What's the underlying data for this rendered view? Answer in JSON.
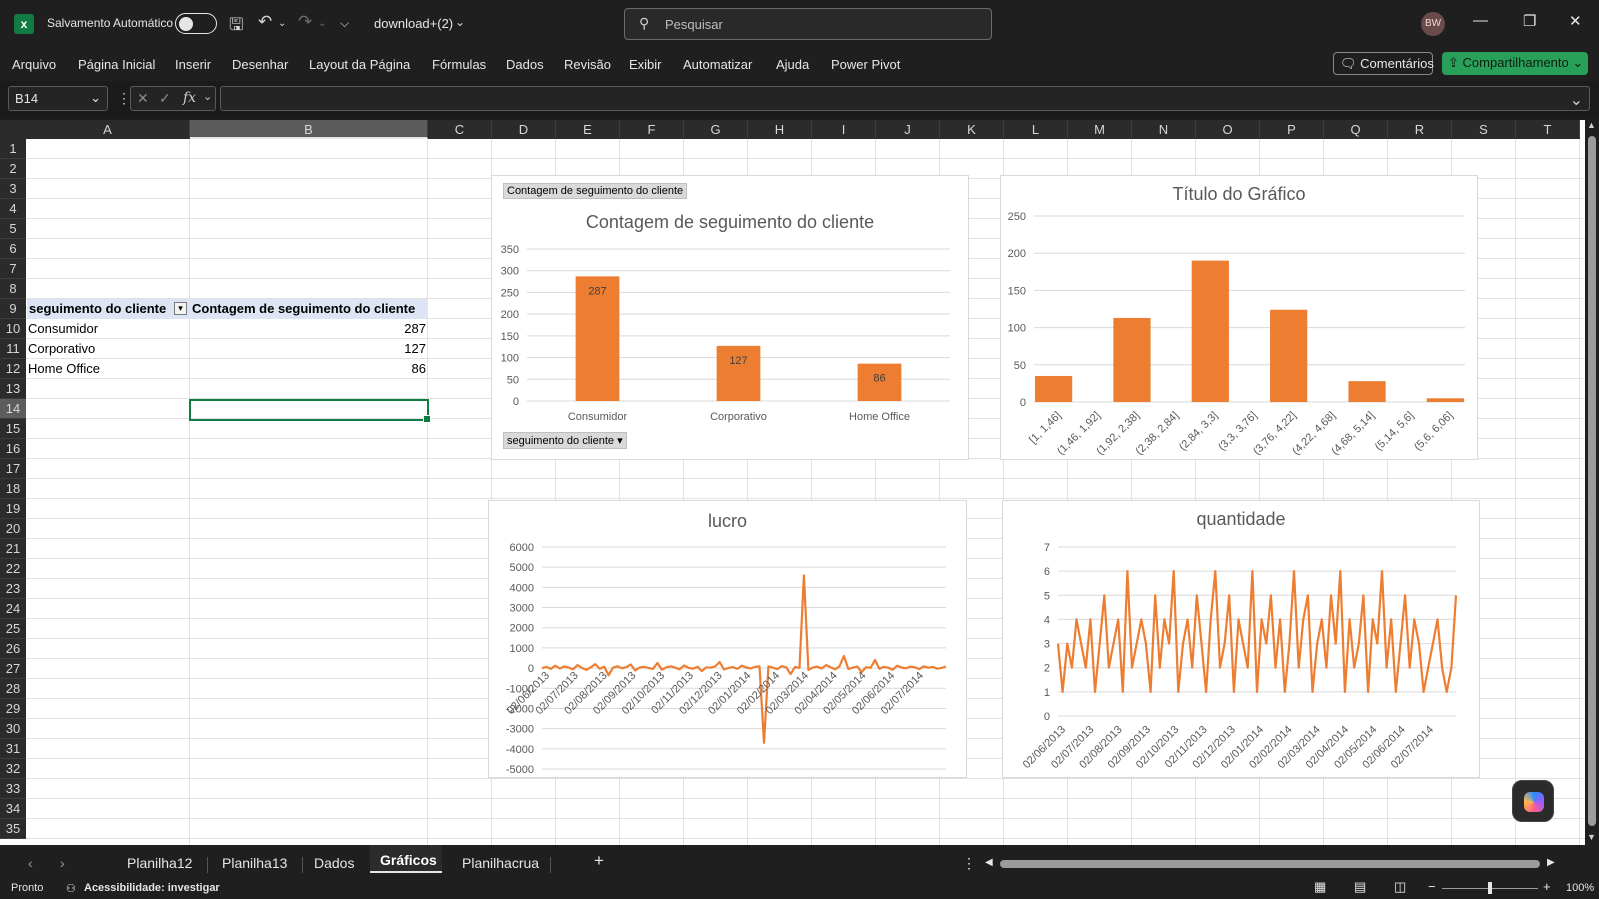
{
  "titlebar": {
    "autosave_label": "Salvamento Automático",
    "filename": "download+(2)",
    "search_placeholder": "Pesquisar",
    "avatar_initials": "BW"
  },
  "menu": {
    "items": [
      "Arquivo",
      "Página Inicial",
      "Inserir",
      "Desenhar",
      "Layout da Página",
      "Fórmulas",
      "Dados",
      "Revisão",
      "Exibir",
      "Automatizar",
      "Ajuda",
      "Power Pivot"
    ],
    "comments_label": "Comentários",
    "share_label": "Compartilhamento"
  },
  "formula_bar": {
    "name_box": "B14",
    "formula": "",
    "fx_label": "fx"
  },
  "grid": {
    "columns": [
      "A",
      "B",
      "C",
      "D",
      "E",
      "F",
      "G",
      "H",
      "I",
      "J",
      "K",
      "L",
      "M",
      "N",
      "O",
      "P",
      "Q",
      "R",
      "S",
      "T"
    ],
    "rows": [
      "1",
      "2",
      "3",
      "4",
      "5",
      "6",
      "7",
      "8",
      "9",
      "10",
      "11",
      "12",
      "13",
      "14",
      "15",
      "16",
      "17",
      "18",
      "19",
      "20",
      "21",
      "22",
      "23",
      "24",
      "25",
      "26",
      "27",
      "28",
      "29",
      "30",
      "31",
      "32",
      "33",
      "34",
      "35"
    ],
    "selected_column": "B",
    "selected_row": "14"
  },
  "pivot_table": {
    "header_row_label": "seguimento do cliente",
    "header_count": "Contagem de seguimento do cliente",
    "rows": [
      {
        "label": "Consumidor",
        "value": "287"
      },
      {
        "label": "Corporativo",
        "value": "127"
      },
      {
        "label": "Home Office",
        "value": "86"
      }
    ]
  },
  "colors": {
    "accent_orange": "#ED7D31",
    "excel_green": "#107C41",
    "share_green": "#28A05A"
  },
  "chart_data": [
    {
      "type": "bar",
      "title": "Contagem de seguimento do cliente",
      "field_button_top": "Contagem de seguimento do cliente",
      "field_button_bottom": "seguimento do cliente",
      "categories": [
        "Consumidor",
        "Corporativo",
        "Home Office"
      ],
      "values": [
        287,
        127,
        86
      ],
      "data_labels": [
        "287",
        "127",
        "86"
      ],
      "ylim": [
        0,
        350
      ],
      "yticks": [
        "0",
        "50",
        "100",
        "150",
        "200",
        "250",
        "300",
        "350"
      ],
      "grid": true,
      "color": "#ED7D31"
    },
    {
      "type": "bar",
      "title": "Título do Gráfico",
      "categories": [
        "[1, 1,46]",
        "(1,46, 1,92]",
        "(1,92, 2,38]",
        "(2,38, 2,84]",
        "(2,84, 3,3]",
        "(3,3, 3,76]",
        "(3,76, 4,22]",
        "(4,22, 4,68]",
        "(4,68, 5,14]",
        "(5,14, 5,6]",
        "(5,6, 6,06]"
      ],
      "values": [
        35,
        0,
        113,
        0,
        190,
        0,
        124,
        0,
        28,
        0,
        5
      ],
      "ylim": [
        0,
        250
      ],
      "yticks": [
        "0",
        "50",
        "100",
        "150",
        "200",
        "250"
      ],
      "grid": true,
      "color": "#ED7D31"
    },
    {
      "type": "line",
      "title": "lucro",
      "ylim": [
        -5000,
        6000
      ],
      "yticks": [
        "-5000",
        "-4000",
        "-3000",
        "-2000",
        "-1000",
        "0",
        "1000",
        "2000",
        "3000",
        "4000",
        "5000",
        "6000"
      ],
      "xticks": [
        "02/06/2013",
        "02/07/2013",
        "02/08/2013",
        "02/09/2013",
        "02/10/2013",
        "02/11/2013",
        "02/12/2013",
        "02/01/2014",
        "02/02/2014",
        "02/03/2014",
        "02/04/2014",
        "02/05/2014",
        "02/06/2014",
        "02/07/2014"
      ],
      "values": [
        0,
        60,
        -40,
        120,
        -20,
        80,
        30,
        -60,
        150,
        10,
        -90,
        40,
        200,
        -30,
        70,
        -350,
        20,
        90,
        -10,
        50,
        180,
        -120,
        30,
        60,
        10,
        -40,
        250,
        -80,
        40,
        90,
        20,
        -60,
        130,
        10,
        -30,
        70,
        -150,
        40,
        20,
        80,
        300,
        -70,
        10,
        50,
        -40,
        120,
        30,
        -20,
        60,
        90,
        -3700,
        80,
        20,
        -50,
        100,
        40,
        -300,
        60,
        10,
        4600,
        -90,
        30,
        70,
        -20,
        150,
        40,
        -60,
        90,
        600,
        -40,
        20,
        80,
        -200,
        50,
        10,
        400,
        -30,
        60,
        20,
        -80,
        120,
        30,
        -10,
        70,
        40,
        -50,
        90,
        20,
        60,
        -30,
        10,
        80
      ],
      "grid": true,
      "color": "#ED7D31"
    },
    {
      "type": "line",
      "title": "quantidade",
      "ylim": [
        0,
        7
      ],
      "yticks": [
        "0",
        "1",
        "2",
        "3",
        "4",
        "5",
        "6",
        "7"
      ],
      "xticks": [
        "02/06/2013",
        "02/07/2013",
        "02/08/2013",
        "02/09/2013",
        "02/10/2013",
        "02/11/2013",
        "02/12/2013",
        "02/01/2014",
        "02/02/2014",
        "02/03/2014",
        "02/04/2014",
        "02/05/2014",
        "02/06/2014",
        "02/07/2014"
      ],
      "values": [
        3,
        1,
        3,
        2,
        4,
        3,
        2,
        4,
        1,
        3,
        5,
        2,
        3,
        4,
        1,
        6,
        2,
        3,
        4,
        3,
        1,
        5,
        2,
        4,
        3,
        6,
        1,
        3,
        4,
        2,
        5,
        3,
        1,
        4,
        6,
        2,
        3,
        5,
        1,
        4,
        3,
        2,
        6,
        1,
        4,
        3,
        5,
        2,
        4,
        1,
        3,
        6,
        2,
        4,
        5,
        1,
        3,
        4,
        2,
        5,
        3,
        6,
        1,
        4,
        2,
        3,
        5,
        1,
        4,
        3,
        6,
        2,
        4,
        1,
        3,
        5,
        2,
        4,
        3,
        1,
        2,
        3,
        4,
        2,
        1,
        2,
        5
      ],
      "grid": true,
      "color": "#ED7D31"
    }
  ],
  "sheet_tabs": [
    "Planilha12",
    "Planilha13",
    "Dados",
    "Gráficos",
    "Planilhacrua"
  ],
  "active_sheet": "Gráficos",
  "status": {
    "ready": "Pronto",
    "accessibility": "Acessibilidade: investigar",
    "zoom": "100%"
  }
}
